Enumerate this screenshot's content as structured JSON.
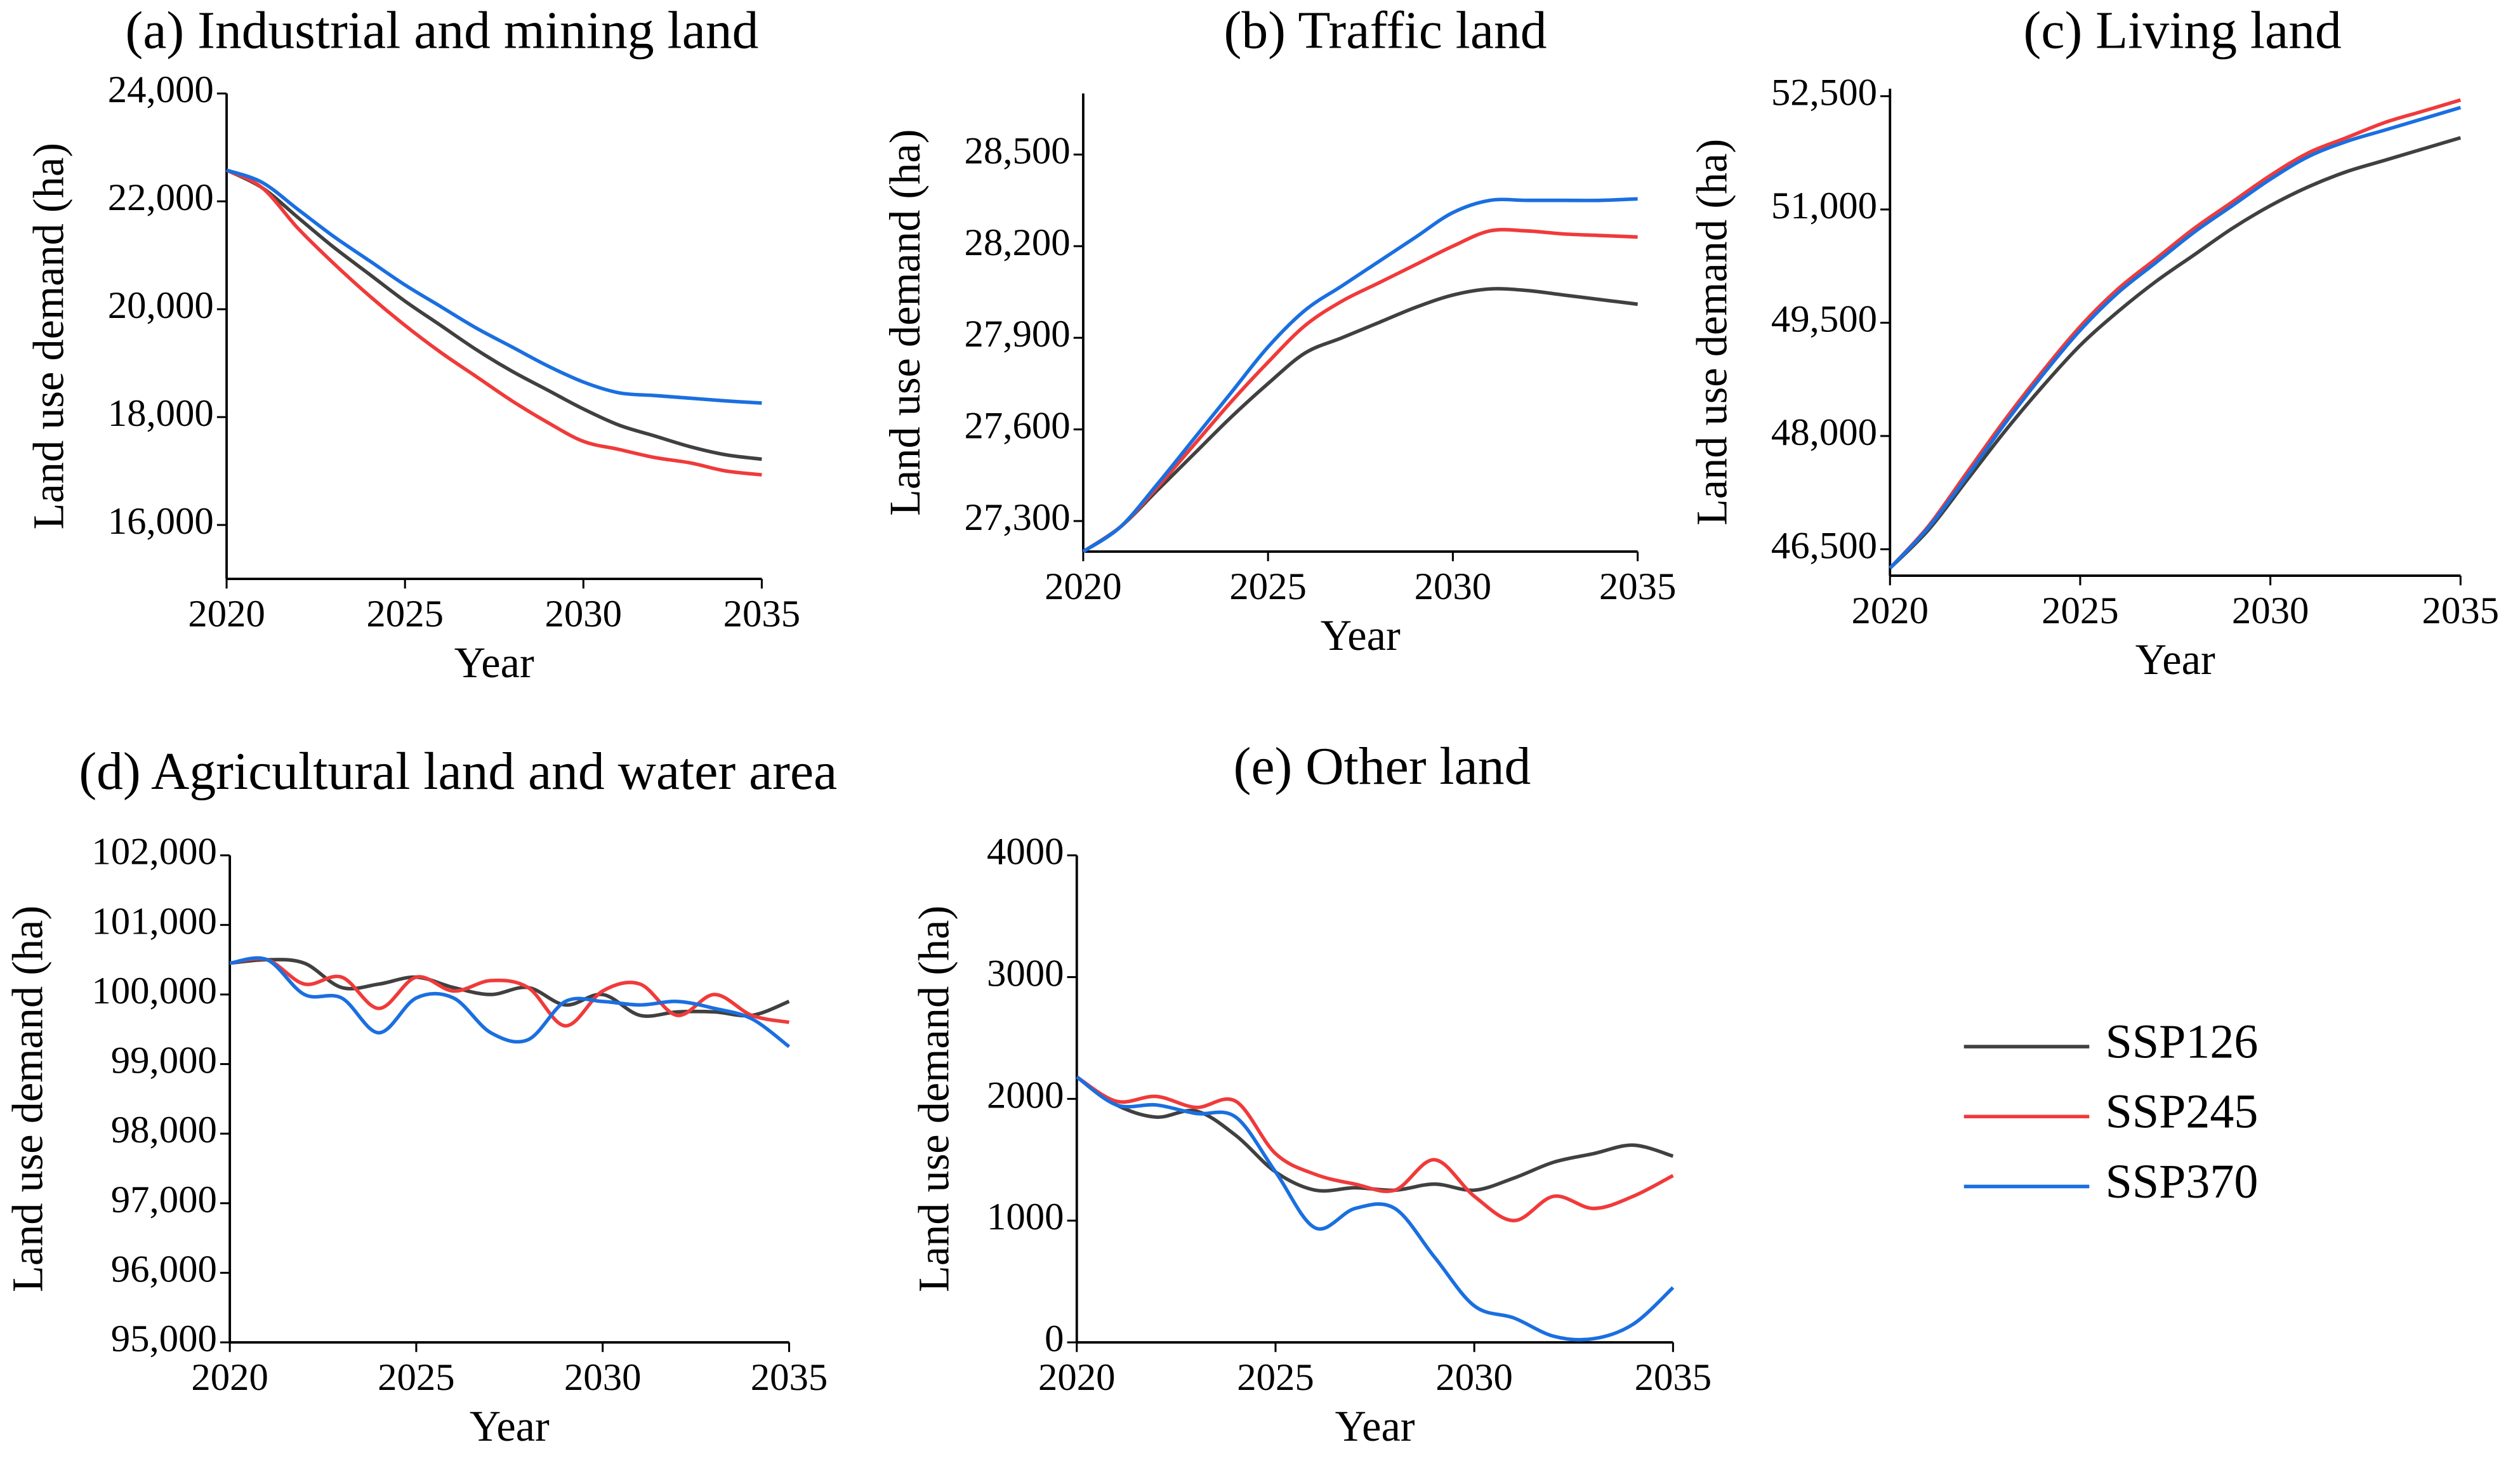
{
  "chart_data": [
    {
      "type": "line",
      "title": "(a) Industrial and mining land",
      "x_label": "Year",
      "y_label": "Land use demand (ha)",
      "x": [
        2020,
        2021,
        2022,
        2023,
        2024,
        2025,
        2026,
        2027,
        2028,
        2029,
        2030,
        2031,
        2032,
        2033,
        2034,
        2035
      ],
      "xlim": [
        2020,
        2035
      ],
      "xticks": [
        2020,
        2025,
        2030,
        2035
      ],
      "ylim": [
        15000,
        24000
      ],
      "yticks": [
        {
          "value": 16000,
          "label": "16,000"
        },
        {
          "value": 18000,
          "label": "18,000"
        },
        {
          "value": 20000,
          "label": "20,000"
        },
        {
          "value": 22000,
          "label": "22,000"
        },
        {
          "value": 24000,
          "label": "24,000"
        }
      ],
      "series": [
        {
          "name": "SSP126",
          "color": "#404040",
          "values": [
            22580,
            22250,
            21700,
            21150,
            20650,
            20150,
            19700,
            19250,
            18850,
            18500,
            18150,
            17850,
            17650,
            17450,
            17300,
            17220
          ]
        },
        {
          "name": "SSP245",
          "color": "#f03a3a",
          "values": [
            22580,
            22250,
            21500,
            20850,
            20250,
            19700,
            19200,
            18750,
            18300,
            17900,
            17550,
            17400,
            17250,
            17150,
            17000,
            16930
          ]
        },
        {
          "name": "SSP370",
          "color": "#1a6fe0",
          "values": [
            22580,
            22350,
            21850,
            21350,
            20900,
            20450,
            20050,
            19650,
            19300,
            18950,
            18650,
            18450,
            18400,
            18350,
            18300,
            18260
          ]
        }
      ]
    },
    {
      "type": "line",
      "title": "(b) Traffic land",
      "x_label": "Year",
      "y_label": "Land use demand (ha)",
      "x": [
        2020,
        2021,
        2022,
        2023,
        2024,
        2025,
        2026,
        2027,
        2028,
        2029,
        2030,
        2031,
        2032,
        2033,
        2034,
        2035
      ],
      "xlim": [
        2020,
        2035
      ],
      "xticks": [
        2020,
        2025,
        2030,
        2035
      ],
      "ylim": [
        27200,
        28700
      ],
      "yticks": [
        {
          "value": 27300,
          "label": "27,300"
        },
        {
          "value": 27600,
          "label": "27,600"
        },
        {
          "value": 27900,
          "label": "27,900"
        },
        {
          "value": 28200,
          "label": "28,200"
        },
        {
          "value": 28500,
          "label": "28,500"
        }
      ],
      "series": [
        {
          "name": "SSP126",
          "color": "#404040",
          "values": [
            27200,
            27280,
            27400,
            27520,
            27640,
            27750,
            27850,
            27900,
            27950,
            28000,
            28040,
            28060,
            28055,
            28040,
            28025,
            28010
          ]
        },
        {
          "name": "SSP245",
          "color": "#f03a3a",
          "values": [
            27200,
            27280,
            27410,
            27550,
            27690,
            27820,
            27940,
            28020,
            28080,
            28140,
            28200,
            28250,
            28250,
            28240,
            28235,
            28230
          ]
        },
        {
          "name": "SSP370",
          "color": "#1a6fe0",
          "values": [
            27200,
            27280,
            27420,
            27570,
            27720,
            27870,
            27990,
            28070,
            28150,
            28230,
            28310,
            28350,
            28350,
            28350,
            28350,
            28355
          ]
        }
      ]
    },
    {
      "type": "line",
      "title": "(c) Living land",
      "x_label": "Year",
      "y_label": "Land use demand (ha)",
      "x": [
        2020,
        2021,
        2022,
        2023,
        2024,
        2025,
        2026,
        2027,
        2028,
        2029,
        2030,
        2031,
        2032,
        2033,
        2034,
        2035
      ],
      "xlim": [
        2020,
        2035
      ],
      "xticks": [
        2020,
        2025,
        2030,
        2035
      ],
      "ylim": [
        46150,
        52600
      ],
      "yticks": [
        {
          "value": 46500,
          "label": "46,500"
        },
        {
          "value": 48000,
          "label": "48,000"
        },
        {
          "value": 49500,
          "label": "49,500"
        },
        {
          "value": 51000,
          "label": "51,000"
        },
        {
          "value": 52500,
          "label": "52,500"
        }
      ],
      "series": [
        {
          "name": "SSP126",
          "color": "#404040",
          "values": [
            46250,
            46750,
            47400,
            48050,
            48650,
            49200,
            49650,
            50050,
            50400,
            50750,
            51050,
            51300,
            51500,
            51650,
            51800,
            51950
          ]
        },
        {
          "name": "SSP245",
          "color": "#f03a3a",
          "values": [
            46250,
            46800,
            47500,
            48200,
            48850,
            49450,
            49950,
            50350,
            50750,
            51100,
            51450,
            51750,
            51950,
            52150,
            52300,
            52450
          ]
        },
        {
          "name": "SSP370",
          "color": "#1a6fe0",
          "values": [
            46250,
            46780,
            47450,
            48150,
            48800,
            49400,
            49900,
            50300,
            50700,
            51050,
            51400,
            51700,
            51900,
            52050,
            52200,
            52350
          ]
        }
      ]
    },
    {
      "type": "line",
      "title": "(d) Agricultural land and water area",
      "x_label": "Year",
      "y_label": "Land use demand (ha)",
      "x": [
        2020,
        2021,
        2022,
        2023,
        2024,
        2025,
        2026,
        2027,
        2028,
        2029,
        2030,
        2031,
        2032,
        2033,
        2034,
        2035
      ],
      "xlim": [
        2020,
        2035
      ],
      "xticks": [
        2020,
        2025,
        2030,
        2035
      ],
      "ylim": [
        95000,
        102000
      ],
      "yticks": [
        {
          "value": 95000,
          "label": "95,000"
        },
        {
          "value": 96000,
          "label": "96,000"
        },
        {
          "value": 97000,
          "label": "97,000"
        },
        {
          "value": 98000,
          "label": "98,000"
        },
        {
          "value": 99000,
          "label": "99,000"
        },
        {
          "value": 100000,
          "label": "100,000"
        },
        {
          "value": 101000,
          "label": "101,000"
        },
        {
          "value": 102000,
          "label": "102,000"
        }
      ],
      "series": [
        {
          "name": "SSP126",
          "color": "#404040",
          "values": [
            100450,
            100500,
            100450,
            100100,
            100150,
            100250,
            100100,
            100000,
            100100,
            99850,
            100000,
            99700,
            99750,
            99750,
            99700,
            99900
          ]
        },
        {
          "name": "SSP245",
          "color": "#f03a3a",
          "values": [
            100450,
            100500,
            100150,
            100250,
            99800,
            100250,
            100050,
            100200,
            100100,
            99550,
            100050,
            100150,
            99700,
            100000,
            99700,
            99600
          ]
        },
        {
          "name": "SSP370",
          "color": "#1a6fe0",
          "values": [
            100450,
            100500,
            100000,
            99950,
            99450,
            99950,
            99950,
            99450,
            99350,
            99900,
            99900,
            99850,
            99900,
            99800,
            99650,
            99250
          ]
        }
      ]
    },
    {
      "type": "line",
      "title": "(e) Other land",
      "x_label": "Year",
      "y_label": "Land use demand (ha)",
      "x": [
        2020,
        2021,
        2022,
        2023,
        2024,
        2025,
        2026,
        2027,
        2028,
        2029,
        2030,
        2031,
        2032,
        2033,
        2034,
        2035
      ],
      "xlim": [
        2020,
        2035
      ],
      "xticks": [
        2020,
        2025,
        2030,
        2035
      ],
      "ylim": [
        0,
        4000
      ],
      "yticks": [
        0,
        1000,
        2000,
        3000,
        4000
      ],
      "series": [
        {
          "name": "SSP126",
          "color": "#404040",
          "values": [
            2180,
            1950,
            1850,
            1900,
            1700,
            1400,
            1250,
            1270,
            1250,
            1300,
            1250,
            1350,
            1480,
            1550,
            1620,
            1530
          ]
        },
        {
          "name": "SSP245",
          "color": "#f03a3a",
          "values": [
            2180,
            1980,
            2020,
            1930,
            1980,
            1550,
            1380,
            1300,
            1250,
            1500,
            1200,
            1000,
            1200,
            1100,
            1200,
            1370
          ]
        },
        {
          "name": "SSP370",
          "color": "#1a6fe0",
          "values": [
            2180,
            1950,
            1950,
            1880,
            1850,
            1400,
            940,
            1100,
            1100,
            700,
            300,
            200,
            50,
            30,
            150,
            450
          ]
        }
      ]
    }
  ]
}
